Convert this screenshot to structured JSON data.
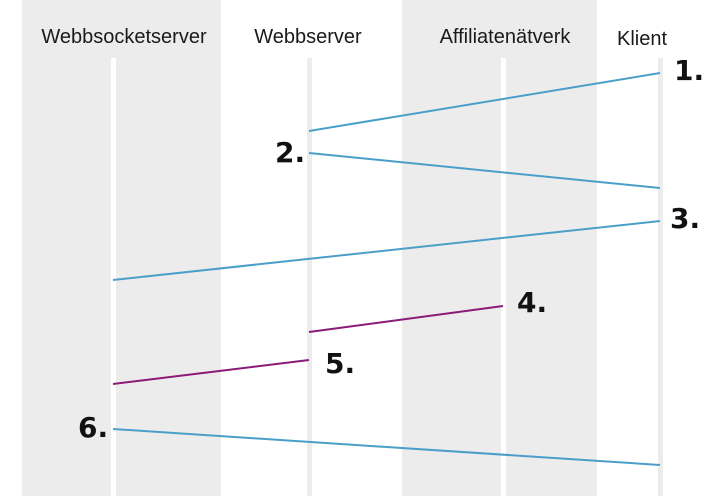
{
  "columns": [
    {
      "id": "websocket",
      "label": "Webbsocketserver"
    },
    {
      "id": "webserver",
      "label": "Webbserver"
    },
    {
      "id": "affiliate",
      "label": "Affiliatenätverk"
    },
    {
      "id": "client",
      "label": "Klient"
    }
  ],
  "steps": [
    {
      "label": "1."
    },
    {
      "label": "2."
    },
    {
      "label": "3."
    },
    {
      "label": "4."
    },
    {
      "label": "5."
    },
    {
      "label": "6."
    }
  ],
  "colors": {
    "lane_band": "#ececec",
    "lifeline": "#ececec",
    "blue_message": "#4a9fc8",
    "purple_message": "#8b1a78"
  }
}
